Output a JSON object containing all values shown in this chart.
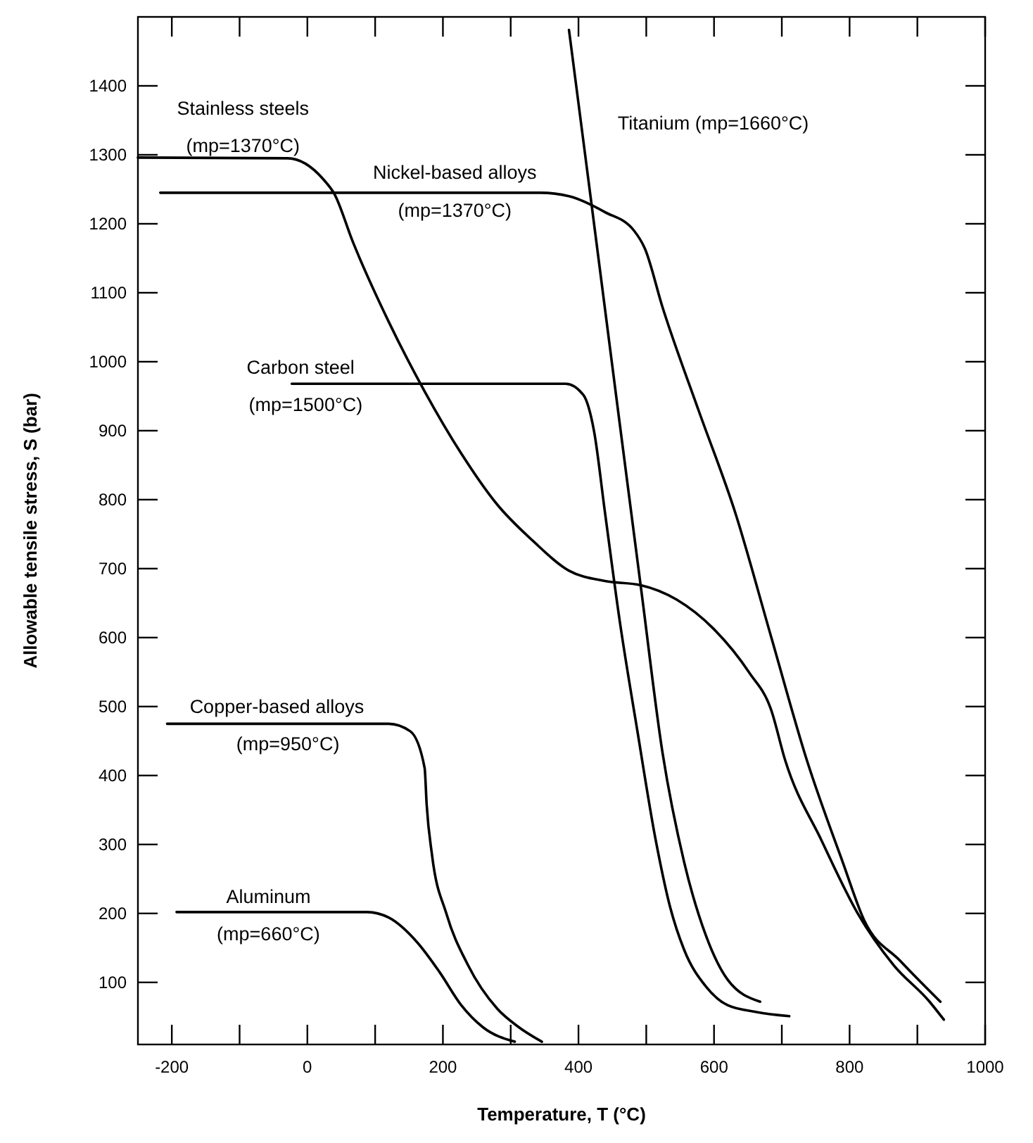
{
  "chart_data": {
    "type": "line",
    "xlabel": "Temperature, T (°C)",
    "ylabel": "Allowable tensile stress, S (bar)",
    "xlim": [
      -250,
      1000
    ],
    "ylim": [
      10,
      1500
    ],
    "xticks": [
      -200,
      {
        "value": -100,
        "label": null
      },
      0,
      {
        "value": 100,
        "label": null
      },
      200,
      {
        "value": 300,
        "label": null
      },
      400,
      {
        "value": 500,
        "label": null
      },
      600,
      {
        "value": 700,
        "label": null
      },
      800,
      {
        "value": 900,
        "label": null
      },
      1000
    ],
    "yticks": [
      100,
      200,
      300,
      400,
      500,
      600,
      700,
      800,
      900,
      1000,
      1100,
      1200,
      1300,
      1400
    ],
    "grid": false,
    "series": [
      {
        "color": "#000000",
        "x": [
          -250,
          -29,
          24,
          40,
          67,
          120,
          173,
          227,
          280,
          333,
          386,
          439,
          492,
          545,
          599,
          652,
          684,
          705,
          759,
          812,
          865,
          918,
          939
        ],
        "values": [
          1296,
          1295,
          1264,
          1243,
          1174,
          1058,
          957,
          867,
          793,
          740,
          697,
          682,
          676,
          655,
          613,
          549,
          496,
          422,
          305,
          200,
          125,
          72,
          46
        ]
      },
      {
        "color": "#000000",
        "x": [
          -217,
          344,
          386,
          439,
          482,
          498,
          524,
          577,
          631,
          684,
          737,
          790,
          822,
          875,
          934
        ],
        "values": [
          1245,
          1245,
          1240,
          1217,
          1190,
          1164,
          1079,
          930,
          782,
          602,
          422,
          274,
          189,
          131,
          72
        ]
      },
      {
        "color": "#000000",
        "x": [
          -23,
          381,
          407,
          423,
          439,
          461,
          487,
          514,
          535,
          556,
          588,
          620,
          663,
          711
        ],
        "values": [
          968,
          968,
          952,
          899,
          782,
          623,
          464,
          306,
          210,
          147,
          94,
          67,
          57,
          51
        ]
      },
      {
        "color": "#000000",
        "x": [
          386,
          418,
          461,
          493,
          524,
          556,
          588,
          620,
          668
        ],
        "values": [
          1481,
          1238,
          909,
          666,
          433,
          274,
          168,
          104,
          72
        ]
      },
      {
        "color": "#000000",
        "x": [
          -207,
          120,
          152,
          173,
          176,
          184,
          205,
          237,
          280,
          312,
          346
        ],
        "values": [
          475,
          475,
          464,
          411,
          358,
          284,
          200,
          125,
          62,
          35,
          14
        ]
      },
      {
        "color": "#000000",
        "x": [
          -193,
          88,
          120,
          163,
          195,
          227,
          259,
          306
        ],
        "values": [
          202,
          202,
          194,
          157,
          115,
          67,
          35,
          14
        ]
      }
    ],
    "annotations": [
      "Stainless steels",
      "(mp=1370°C)",
      "Nickel-based alloys",
      "(mp=1370°C)",
      "Carbon steel",
      "(mp=1500°C)",
      "Titanium (mp=1660°C)",
      "Copper-based alloys",
      "(mp=950°C)",
      "Aluminum",
      "(mp=660°C)"
    ]
  }
}
